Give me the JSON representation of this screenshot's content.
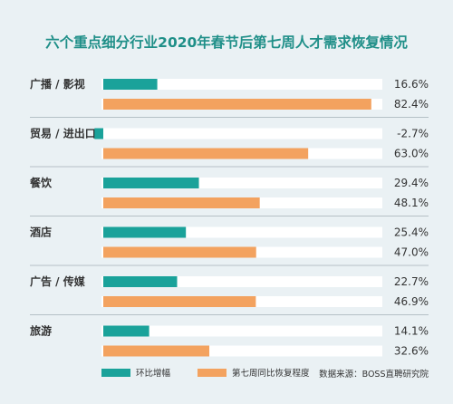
{
  "colors": {
    "teal": "#1aa29a",
    "orange": "#f3a25f",
    "track": "#ffffff",
    "title": "#1f8f88",
    "background": "#eaf1f4"
  },
  "chart_data": {
    "type": "bar",
    "orientation": "horizontal",
    "title": "六个重点细分行业2020年春节后第七周人才需求恢复情况",
    "value_unit": "%",
    "categories": [
      "广播 / 影视",
      "贸易 / 进出口",
      "餐饮",
      "酒店",
      "广告 / 传媒",
      "旅游"
    ],
    "series": [
      {
        "name": "环比增幅",
        "color": "#1aa29a",
        "values": [
          16.6,
          -2.7,
          29.4,
          25.4,
          22.7,
          14.1
        ]
      },
      {
        "name": "第七周同比恢复程度",
        "color": "#f3a25f",
        "values": [
          82.4,
          63.0,
          48.1,
          47.0,
          46.9,
          32.6
        ]
      }
    ],
    "value_labels": [
      [
        "16.6%",
        "-2.7%",
        "29.4%",
        "25.4%",
        "22.7%",
        "14.1%"
      ],
      [
        "82.4%",
        "63.0%",
        "48.1%",
        "47.0%",
        "46.9%",
        "32.6%"
      ]
    ],
    "xlim": [
      -5,
      100
    ],
    "grid": false,
    "legend_position": "bottom",
    "source": "数据来源：BOSS直聘研究院"
  }
}
